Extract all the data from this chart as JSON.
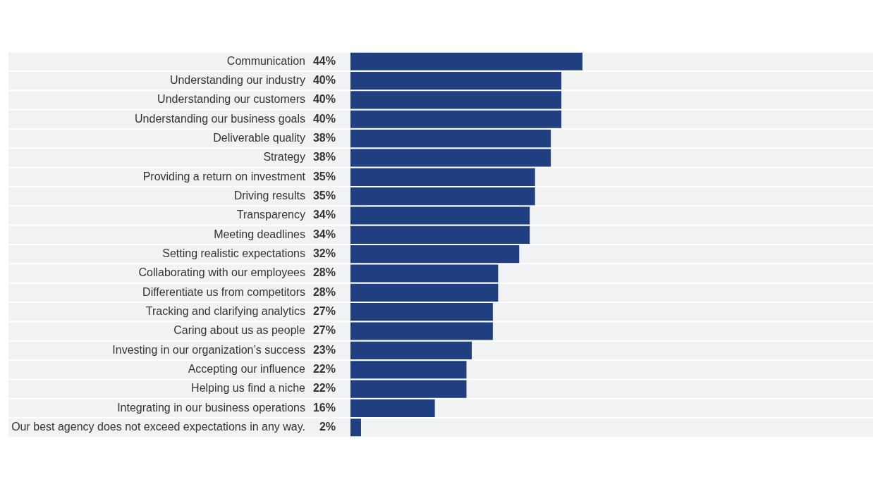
{
  "chart_data": {
    "type": "bar",
    "orientation": "horizontal",
    "color": "#1f3f80",
    "categories": [
      "Communication",
      "Understanding our industry",
      "Understanding our customers",
      "Understanding our business goals",
      "Deliverable quality",
      "Strategy",
      "Providing a return on investment",
      "Driving results",
      "Transparency",
      "Meeting deadlines",
      "Setting realistic expectations",
      "Collaborating with our employees",
      "Differentiate us from competitors",
      "Tracking and clarifying analytics",
      "Caring about us as people",
      "Investing in our organization’s success",
      "Accepting our influence",
      "Helping us find a niche",
      "Integrating in our business operations",
      "Our best agency does not exceed expectations in any way."
    ],
    "values": [
      44,
      40,
      40,
      40,
      38,
      38,
      35,
      35,
      34,
      34,
      32,
      28,
      28,
      27,
      27,
      23,
      22,
      22,
      16,
      2
    ],
    "value_labels": [
      "44%",
      "40%",
      "40%",
      "40%",
      "38%",
      "38%",
      "35%",
      "35%",
      "34%",
      "34%",
      "32%",
      "28%",
      "28%",
      "27%",
      "27%",
      "23%",
      "22%",
      "22%",
      "16%",
      "2%"
    ],
    "legend": false
  }
}
